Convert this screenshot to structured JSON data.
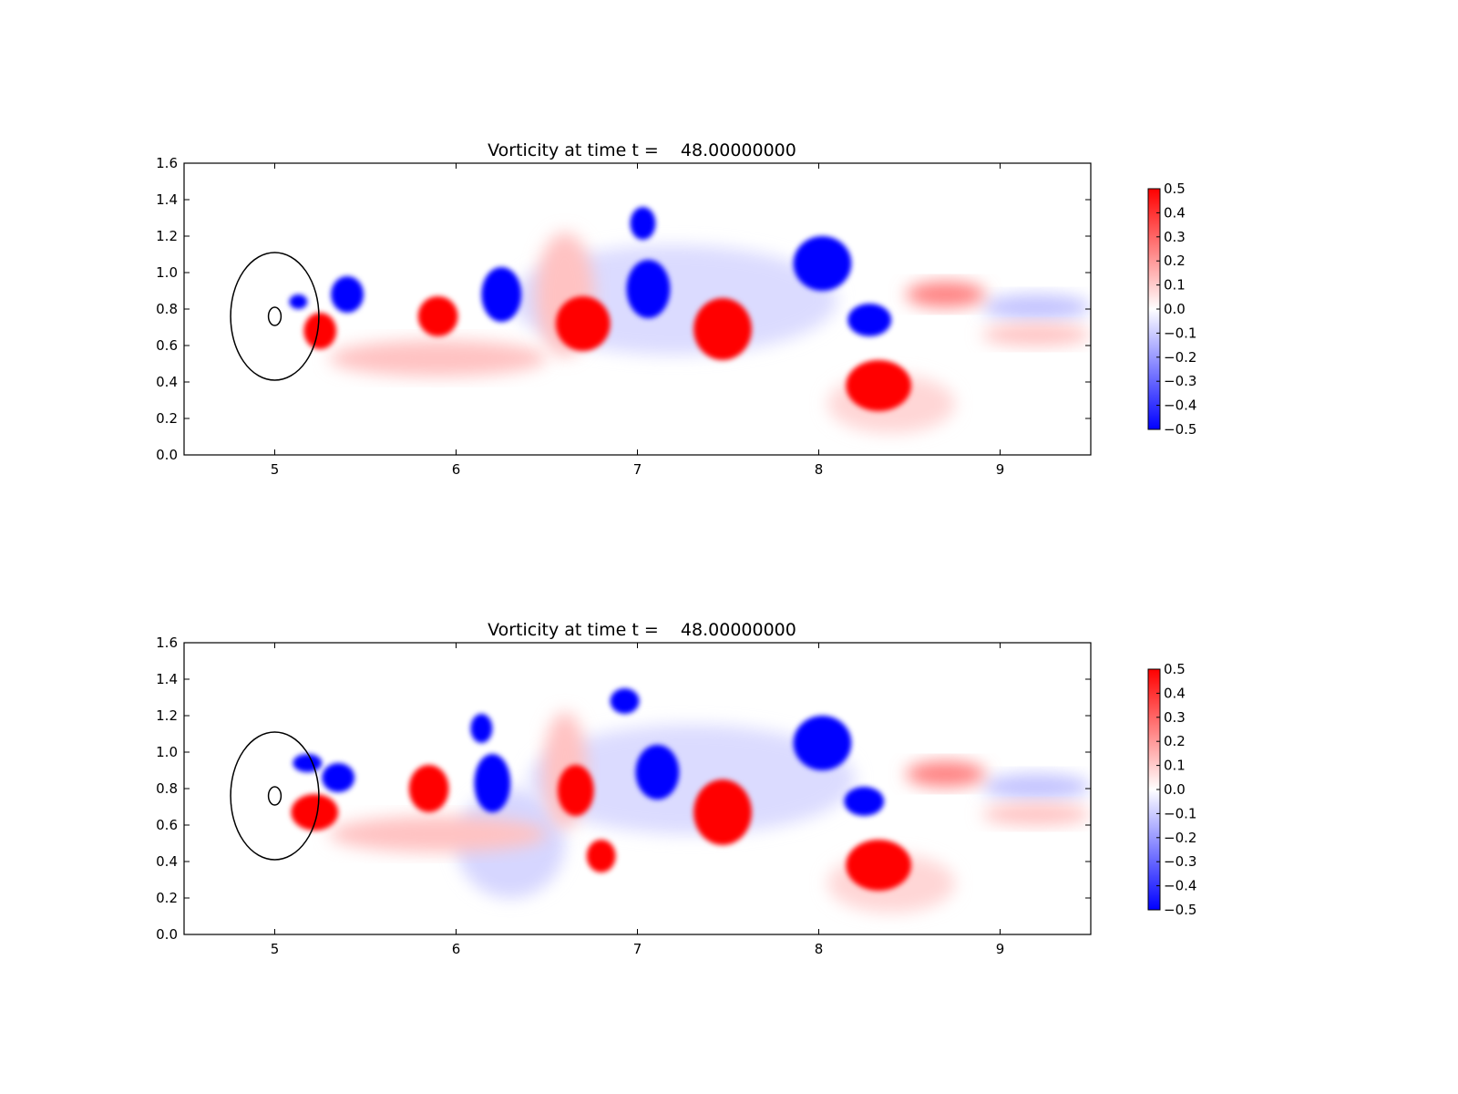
{
  "colors": {
    "positive": "#ff0000",
    "negative": "#0000ff",
    "zero": "#ffffff",
    "axes": "#000000"
  },
  "chart_data": [
    {
      "type": "heatmap",
      "title": "Vorticity at time t =    48.00000000",
      "xlim": [
        4.5,
        9.5
      ],
      "ylim": [
        0.0,
        1.6
      ],
      "xticks": [
        "5",
        "6",
        "7",
        "8",
        "9"
      ],
      "yticks": [
        "0.0",
        "0.2",
        "0.4",
        "0.6",
        "0.8",
        "1.0",
        "1.2",
        "1.4",
        "1.6"
      ],
      "colormap": "bwr",
      "clim": [
        -0.5,
        0.5
      ],
      "colorbar_ticks": [
        "0.5",
        "0.4",
        "0.3",
        "0.2",
        "0.1",
        "0.0",
        "−0.1",
        "−0.2",
        "−0.3",
        "−0.4",
        "−0.5"
      ],
      "circles": [
        {
          "cx": 5.0,
          "cy": 0.76,
          "r": 0.35
        },
        {
          "cx": 5.0,
          "cy": 0.76,
          "r": 0.05
        }
      ],
      "vortices": [
        {
          "x": 5.4,
          "y": 0.88,
          "rx": 0.09,
          "ry": 0.1,
          "value": -0.5
        },
        {
          "x": 5.13,
          "y": 0.84,
          "rx": 0.05,
          "ry": 0.04,
          "value": -0.5
        },
        {
          "x": 5.25,
          "y": 0.68,
          "rx": 0.09,
          "ry": 0.1,
          "value": 0.5
        },
        {
          "x": 5.9,
          "y": 0.76,
          "rx": 0.11,
          "ry": 0.11,
          "value": 0.5
        },
        {
          "x": 6.25,
          "y": 0.88,
          "rx": 0.11,
          "ry": 0.15,
          "value": -0.5
        },
        {
          "x": 6.7,
          "y": 0.72,
          "rx": 0.15,
          "ry": 0.15,
          "value": 0.5
        },
        {
          "x": 7.03,
          "y": 1.27,
          "rx": 0.07,
          "ry": 0.09,
          "value": -0.5
        },
        {
          "x": 7.06,
          "y": 0.91,
          "rx": 0.12,
          "ry": 0.16,
          "value": -0.5
        },
        {
          "x": 7.47,
          "y": 0.69,
          "rx": 0.16,
          "ry": 0.17,
          "value": 0.5
        },
        {
          "x": 8.02,
          "y": 1.05,
          "rx": 0.16,
          "ry": 0.15,
          "value": -0.5
        },
        {
          "x": 8.28,
          "y": 0.74,
          "rx": 0.12,
          "ry": 0.09,
          "value": -0.5
        },
        {
          "x": 8.33,
          "y": 0.38,
          "rx": 0.18,
          "ry": 0.14,
          "value": 0.5
        },
        {
          "x": 8.7,
          "y": 0.88,
          "rx": 0.22,
          "ry": 0.07,
          "value": 0.25
        },
        {
          "x": 9.2,
          "y": 0.81,
          "rx": 0.3,
          "ry": 0.07,
          "value": -0.12
        },
        {
          "x": 9.2,
          "y": 0.66,
          "rx": 0.3,
          "ry": 0.06,
          "value": 0.12
        },
        {
          "x": 5.9,
          "y": 0.53,
          "rx": 0.6,
          "ry": 0.1,
          "value": 0.12
        },
        {
          "x": 6.6,
          "y": 0.88,
          "rx": 0.16,
          "ry": 0.34,
          "value": 0.12
        },
        {
          "x": 7.2,
          "y": 0.85,
          "rx": 0.9,
          "ry": 0.3,
          "value": -0.07
        },
        {
          "x": 8.4,
          "y": 0.28,
          "rx": 0.35,
          "ry": 0.16,
          "value": 0.08
        }
      ]
    },
    {
      "type": "heatmap",
      "title": "Vorticity at time t =    48.00000000",
      "xlim": [
        4.5,
        9.5
      ],
      "ylim": [
        0.0,
        1.6
      ],
      "xticks": [
        "5",
        "6",
        "7",
        "8",
        "9"
      ],
      "yticks": [
        "0.0",
        "0.2",
        "0.4",
        "0.6",
        "0.8",
        "1.0",
        "1.2",
        "1.4",
        "1.6"
      ],
      "colormap": "bwr",
      "clim": [
        -0.5,
        0.5
      ],
      "colorbar_ticks": [
        "0.5",
        "0.4",
        "0.3",
        "0.2",
        "0.1",
        "0.0",
        "−0.1",
        "−0.2",
        "−0.3",
        "−0.4",
        "−0.5"
      ],
      "circles": [
        {
          "cx": 5.0,
          "cy": 0.76,
          "r": 0.35
        },
        {
          "cx": 5.0,
          "cy": 0.76,
          "r": 0.05
        }
      ],
      "vortices": [
        {
          "x": 5.35,
          "y": 0.86,
          "rx": 0.09,
          "ry": 0.08,
          "value": -0.5
        },
        {
          "x": 5.18,
          "y": 0.94,
          "rx": 0.08,
          "ry": 0.05,
          "value": -0.5
        },
        {
          "x": 5.22,
          "y": 0.67,
          "rx": 0.13,
          "ry": 0.1,
          "value": 0.5
        },
        {
          "x": 5.85,
          "y": 0.8,
          "rx": 0.11,
          "ry": 0.13,
          "value": 0.5
        },
        {
          "x": 6.14,
          "y": 1.13,
          "rx": 0.06,
          "ry": 0.08,
          "value": -0.5
        },
        {
          "x": 6.2,
          "y": 0.83,
          "rx": 0.1,
          "ry": 0.16,
          "value": -0.5
        },
        {
          "x": 6.66,
          "y": 0.79,
          "rx": 0.1,
          "ry": 0.14,
          "value": 0.5
        },
        {
          "x": 6.8,
          "y": 0.43,
          "rx": 0.08,
          "ry": 0.09,
          "value": 0.5
        },
        {
          "x": 6.93,
          "y": 1.28,
          "rx": 0.08,
          "ry": 0.07,
          "value": -0.5
        },
        {
          "x": 7.11,
          "y": 0.89,
          "rx": 0.12,
          "ry": 0.15,
          "value": -0.5
        },
        {
          "x": 7.47,
          "y": 0.67,
          "rx": 0.16,
          "ry": 0.18,
          "value": 0.5
        },
        {
          "x": 8.02,
          "y": 1.05,
          "rx": 0.16,
          "ry": 0.15,
          "value": -0.5
        },
        {
          "x": 8.25,
          "y": 0.73,
          "rx": 0.11,
          "ry": 0.08,
          "value": -0.5
        },
        {
          "x": 8.33,
          "y": 0.38,
          "rx": 0.18,
          "ry": 0.14,
          "value": 0.5
        },
        {
          "x": 8.7,
          "y": 0.88,
          "rx": 0.22,
          "ry": 0.07,
          "value": 0.25
        },
        {
          "x": 9.2,
          "y": 0.81,
          "rx": 0.3,
          "ry": 0.07,
          "value": -0.12
        },
        {
          "x": 9.2,
          "y": 0.66,
          "rx": 0.3,
          "ry": 0.06,
          "value": 0.12
        },
        {
          "x": 5.9,
          "y": 0.55,
          "rx": 0.6,
          "ry": 0.1,
          "value": 0.12
        },
        {
          "x": 6.6,
          "y": 0.9,
          "rx": 0.12,
          "ry": 0.32,
          "value": 0.12
        },
        {
          "x": 6.3,
          "y": 0.5,
          "rx": 0.3,
          "ry": 0.3,
          "value": -0.08
        },
        {
          "x": 7.3,
          "y": 0.85,
          "rx": 0.9,
          "ry": 0.3,
          "value": -0.07
        },
        {
          "x": 8.4,
          "y": 0.28,
          "rx": 0.35,
          "ry": 0.16,
          "value": 0.08
        }
      ]
    }
  ]
}
